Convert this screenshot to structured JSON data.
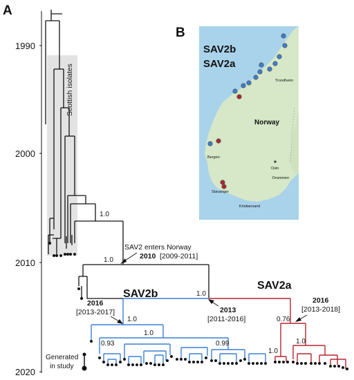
{
  "panels": {
    "a_label": "A",
    "b_label": "B"
  },
  "time_axis": {
    "ticks": [
      "1990",
      "2000",
      "2010",
      "2020"
    ],
    "tick_years": [
      1990,
      2000,
      2010,
      2020
    ]
  },
  "scottish": {
    "label": "Scottish isolates"
  },
  "annotations": {
    "enters_line1": "SAV2 enters Norway",
    "enters_year": "2010",
    "enters_range": "[2009-2011]",
    "sav2b": "SAV2b",
    "sav2a": "SAV2a",
    "node_2013_year": "2013",
    "node_2013_range": "[2011-2016]",
    "node_2016_left_year": "2016",
    "node_2016_left_range": "[2013-2017]",
    "node_2016_right_year": "2016",
    "node_2016_right_range": "[2013-2018]",
    "generated_line1": "Generated",
    "generated_line2": "in study"
  },
  "support_values": {
    "s_top": "1.0",
    "s_enters": "1.0",
    "s_root_norway": "1.0",
    "s_sav2b_node": "1.0",
    "s_sav2b_inner": "1.0",
    "s_093": "0.93",
    "s_099": "0.99",
    "s_076": "0.76",
    "s_sav2a_inner": "1.0",
    "s_sav2a_low": "1.0"
  },
  "map": {
    "legend_sav2b": "SAV2b",
    "legend_sav2a": "SAV2a",
    "country": "Norway",
    "cities": [
      "Trondheim",
      "Bergen",
      "Oslo",
      "Drammen",
      "Stavanger",
      "Kristiansand"
    ]
  },
  "colors": {
    "sav2b": "#3a7fd5",
    "sav2a": "#b5232f",
    "scottish_shade": "#e3e3e3",
    "sea": "#a9d3ea",
    "land": "#d6e8c7",
    "tree": "#111111"
  }
}
